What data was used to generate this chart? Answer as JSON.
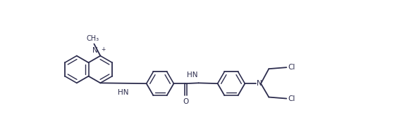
{
  "bg_color": "#ffffff",
  "line_color": "#2d2d4e",
  "line_width": 1.3,
  "font_size": 7.5,
  "figsize": [
    5.73,
    1.84
  ],
  "dpi": 100,
  "xlim": [
    0,
    11.0
  ],
  "ylim": [
    0,
    3.4
  ]
}
